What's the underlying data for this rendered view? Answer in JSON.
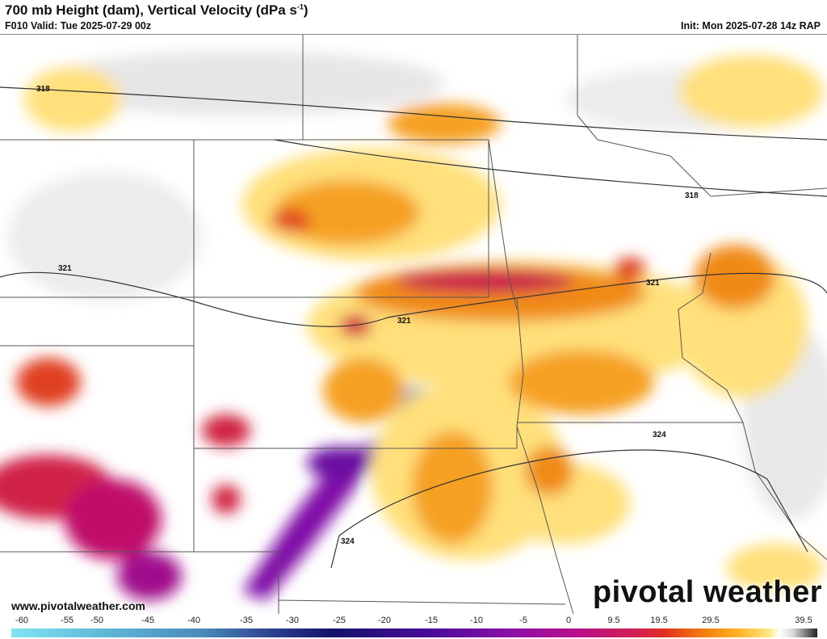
{
  "header": {
    "title": "700 mb Height (dam), Vertical Velocity (dPa s",
    "title_sup": "-1",
    "title_end": ")",
    "valid": "F010 Valid: Tue 2025-07-29 00z",
    "init": "Init: Mon 2025-07-28 14z RAP"
  },
  "map": {
    "contour_labels": [
      "318",
      "318",
      "321",
      "321",
      "321",
      "324",
      "324"
    ],
    "colors": {
      "upward_weak": "#ffe070",
      "upward_moderate": "#f08010",
      "upward_strong": "#c0105a",
      "upward_extreme": "#7010a0",
      "downward": "#a0a0a0"
    }
  },
  "footer": {
    "website": "www.pivotalweather.com",
    "logo": "pivotal weather"
  },
  "colorbar": {
    "labels": [
      "-60",
      "-55",
      "-50",
      "-45",
      "-40",
      "-35",
      "-30",
      "-25",
      "-20",
      "-15",
      "-10",
      "-5",
      "0",
      "9.5",
      "19.5",
      "29.5",
      "39.5"
    ]
  }
}
